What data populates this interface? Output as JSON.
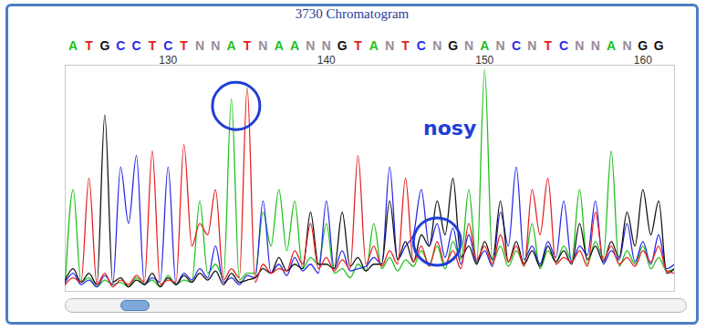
{
  "chart_data": {
    "type": "line",
    "title": "3730 Chromatogram",
    "x": [
      123.5,
      124,
      124.5,
      125,
      125.5,
      126,
      126.5,
      127,
      127.5,
      128,
      128.5,
      129,
      129.5,
      130,
      130.5,
      131,
      131.5,
      132,
      132.5,
      133,
      133.5,
      134,
      134.5,
      135,
      135.5,
      136,
      136.5,
      137,
      137.5,
      138,
      138.5,
      139,
      139.5,
      140,
      140.5,
      141,
      141.5,
      142,
      142.5,
      143,
      143.5,
      144,
      144.5,
      145,
      145.5,
      146,
      146.5,
      147,
      147.5,
      148,
      148.5,
      149,
      149.5,
      150,
      150.5,
      151,
      151.5,
      152,
      152.5,
      153,
      153.5,
      154,
      154.5,
      155,
      155.5,
      156,
      156.5,
      157,
      157.5,
      158,
      158.5,
      159,
      159.5,
      160,
      160.5,
      161,
      161.5,
      162
    ],
    "series": [
      {
        "name": "A",
        "color": "#20c020",
        "values": [
          3,
          45,
          4,
          6,
          2,
          5,
          3,
          4,
          2,
          6,
          3,
          5,
          2,
          7,
          3,
          5,
          4,
          40,
          8,
          12,
          6,
          85,
          5,
          8,
          8,
          35,
          20,
          45,
          18,
          40,
          10,
          15,
          12,
          30,
          8,
          10,
          6,
          12,
          9,
          30,
          10,
          15,
          9,
          14,
          11,
          18,
          12,
          20,
          10,
          22,
          14,
          45,
          12,
          98,
          13,
          20,
          11,
          18,
          12,
          30,
          10,
          18,
          13,
          20,
          14,
          45,
          12,
          22,
          15,
          62,
          11,
          18,
          12,
          20,
          10,
          15,
          9,
          10
        ]
      },
      {
        "name": "C",
        "color": "#2a2ae8",
        "values": [
          4,
          8,
          3,
          5,
          2,
          7,
          3,
          55,
          30,
          60,
          3,
          6,
          4,
          55,
          3,
          8,
          5,
          10,
          6,
          20,
          4,
          6,
          3,
          7,
          6,
          40,
          8,
          12,
          7,
          15,
          9,
          12,
          8,
          40,
          10,
          18,
          9,
          10,
          11,
          15,
          12,
          55,
          14,
          20,
          25,
          45,
          20,
          30,
          15,
          28,
          12,
          25,
          13,
          18,
          11,
          35,
          20,
          55,
          14,
          20,
          12,
          22,
          15,
          40,
          13,
          20,
          16,
          40,
          12,
          18,
          14,
          30,
          13,
          22,
          12,
          25,
          10,
          12
        ]
      },
      {
        "name": "G",
        "color": "#111111",
        "values": [
          5,
          10,
          4,
          8,
          3,
          78,
          4,
          6,
          2,
          5,
          3,
          8,
          2,
          6,
          3,
          7,
          4,
          8,
          5,
          9,
          3,
          8,
          4,
          5,
          6,
          10,
          8,
          15,
          9,
          12,
          10,
          35,
          12,
          12,
          10,
          35,
          11,
          15,
          9,
          12,
          12,
          40,
          14,
          22,
          13,
          25,
          20,
          40,
          25,
          50,
          15,
          20,
          12,
          22,
          14,
          40,
          13,
          22,
          12,
          18,
          11,
          20,
          13,
          18,
          12,
          30,
          14,
          20,
          13,
          22,
          15,
          35,
          20,
          45,
          25,
          40,
          8,
          10
        ]
      },
      {
        "name": "T",
        "color": "#e82020",
        "values": [
          3,
          6,
          4,
          50,
          3,
          8,
          2,
          5,
          3,
          7,
          4,
          62,
          3,
          5,
          4,
          65,
          20,
          30,
          25,
          45,
          5,
          10,
          6,
          90,
          4,
          12,
          8,
          10,
          9,
          18,
          12,
          30,
          10,
          15,
          9,
          14,
          10,
          60,
          12,
          20,
          11,
          18,
          12,
          50,
          13,
          20,
          11,
          22,
          12,
          18,
          10,
          30,
          14,
          20,
          12,
          25,
          13,
          20,
          11,
          45,
          25,
          50,
          12,
          15,
          13,
          18,
          11,
          35,
          14,
          20,
          12,
          15,
          11,
          18,
          13,
          20,
          9,
          8
        ]
      }
    ],
    "xlim": [
      123.5,
      162
    ],
    "xticks": [
      130,
      140,
      150,
      160
    ],
    "ylim": [
      0,
      100
    ],
    "tick_labels": "x",
    "grid": false,
    "base_calls": {
      "x": [
        124,
        125,
        126,
        127,
        128,
        129,
        130,
        131,
        132,
        133,
        134,
        135,
        136,
        137,
        138,
        139,
        140,
        141,
        142,
        143,
        144,
        145,
        146,
        147,
        148,
        149,
        150,
        151,
        152,
        153,
        154,
        155,
        156,
        157,
        158,
        159,
        160,
        161
      ],
      "labels": [
        "A",
        "T",
        "G",
        "C",
        "C",
        "T",
        "C",
        "T",
        "N",
        "N",
        "A",
        "T",
        "N",
        "A",
        "A",
        "N",
        "N",
        "G",
        "T",
        "A",
        "N",
        "T",
        "C",
        "N",
        "G",
        "N",
        "A",
        "N",
        "C",
        "N",
        "T",
        "C",
        "N",
        "N",
        "A",
        "N",
        "G",
        "G"
      ]
    },
    "annotations": [
      {
        "text": "nosy",
        "x": 147.8,
        "y": 72
      }
    ],
    "highlights": [
      {
        "x": 134.3,
        "y": 82
      },
      {
        "x": 147,
        "y": 22
      }
    ]
  }
}
